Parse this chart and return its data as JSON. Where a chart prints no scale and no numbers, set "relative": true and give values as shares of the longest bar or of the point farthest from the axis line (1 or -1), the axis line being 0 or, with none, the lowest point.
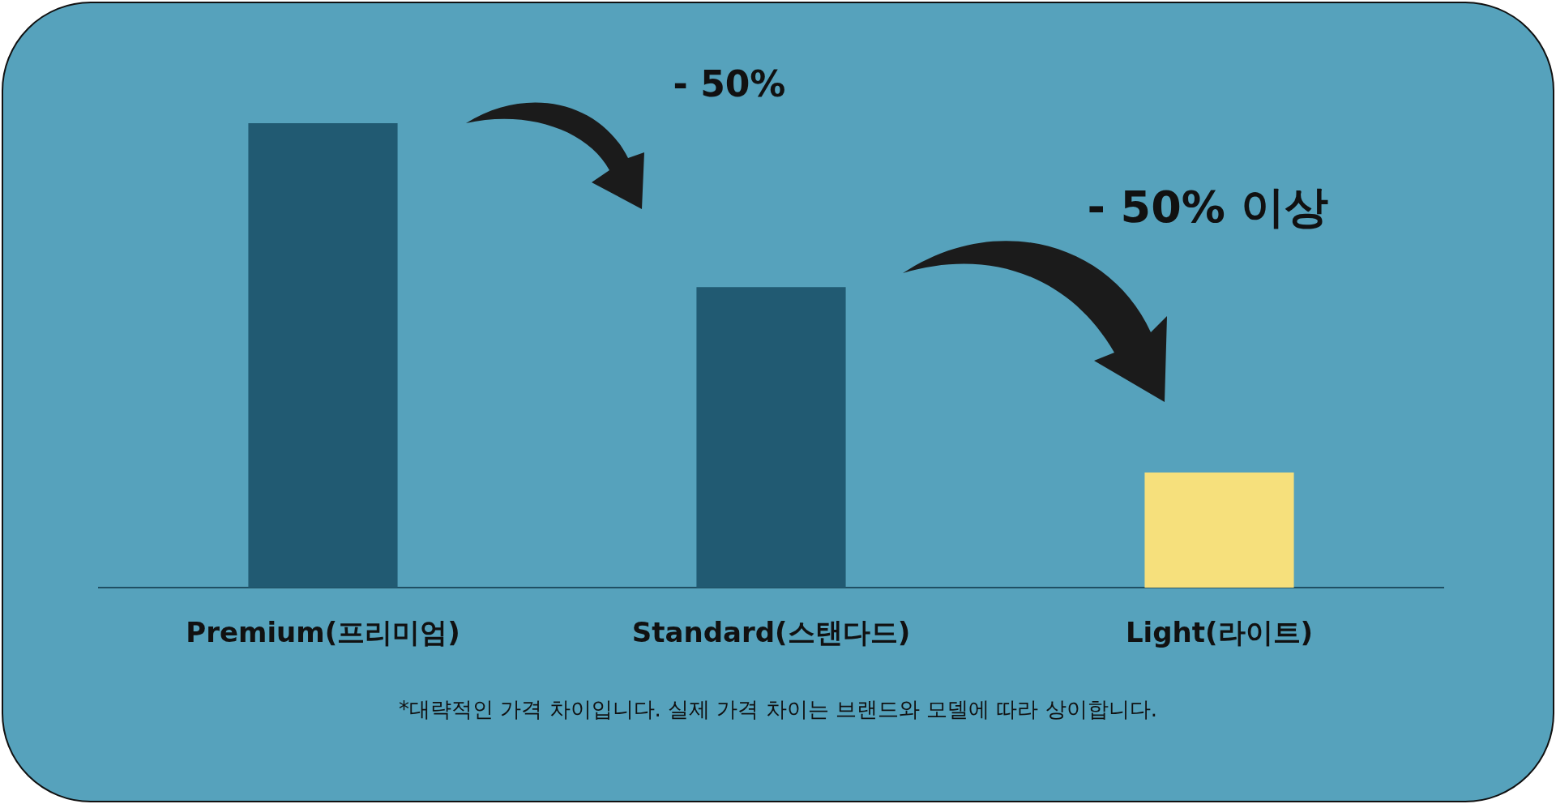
{
  "chart_data": {
    "type": "bar",
    "relative": true,
    "categories": [
      "Premium(프리미엄)",
      "Standard(스탠다드)",
      "Light(라이트)"
    ],
    "values": [
      1,
      0.647,
      0.248
    ],
    "colors": [
      "#215a72",
      "#215a72",
      "#f6e07c"
    ],
    "grid": false,
    "legend": false,
    "tick_labels": "x",
    "annotations": [
      "- 50%",
      "- 50% 이상",
      "*대략적인 가격 차이입니다. 실제 가격 차이는 브랜드와 모델에 따라 상이합니다."
    ]
  }
}
